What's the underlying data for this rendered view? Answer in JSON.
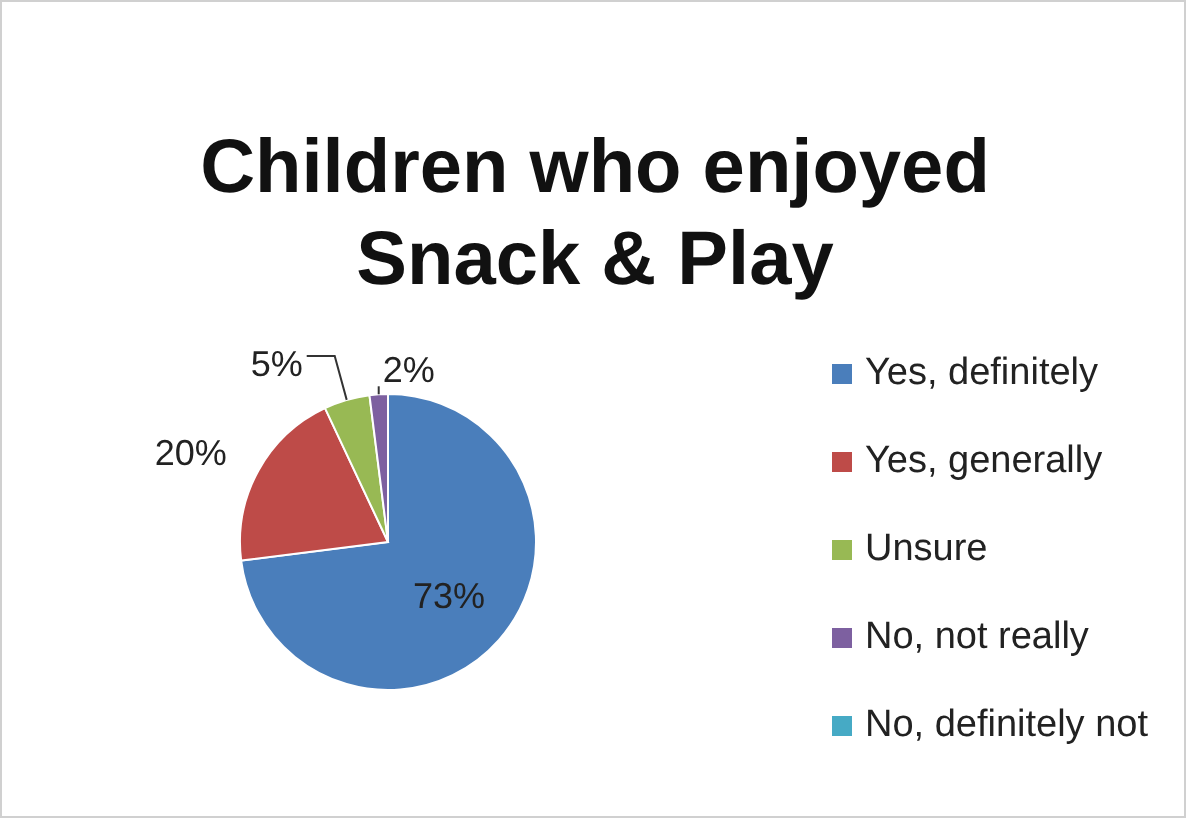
{
  "chart_data": {
    "type": "pie",
    "title": "Children who enjoyed Snack & Play",
    "categories": [
      "Yes, definitely",
      "Yes, generally",
      "Unsure",
      "No, not really",
      "No, definitely not"
    ],
    "values": [
      73,
      20,
      5,
      2,
      0
    ],
    "colors": [
      "#4a7ebb",
      "#be4b48",
      "#98b954",
      "#7d60a0",
      "#46aac5"
    ],
    "value_labels": [
      "73%",
      "20%",
      "5%",
      "2%",
      null
    ],
    "legend": "right"
  }
}
